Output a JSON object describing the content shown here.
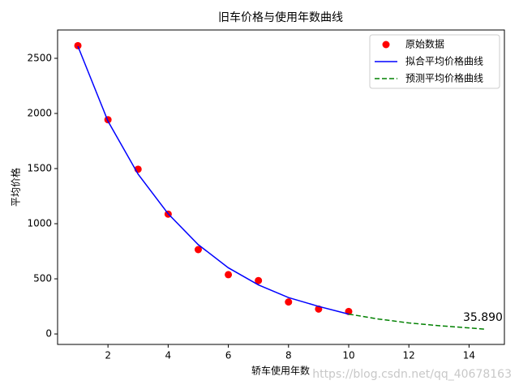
{
  "chart_data": {
    "type": "line",
    "title": "旧车价格与使用年数曲线",
    "x_label": "轿车使用年数",
    "y_label": "平均价格",
    "xlim": [
      0.325,
      15.175
    ],
    "xticks": [
      2,
      4,
      6,
      8,
      10,
      12,
      14
    ],
    "ylim": [
      -95,
      2757
    ],
    "yticks": [
      0,
      500,
      1000,
      1500,
      2000,
      2500
    ],
    "legend": "upper right",
    "series": [
      {
        "name": "原始数据",
        "color": "#ff0000",
        "style": "marker",
        "x": [
          1,
          2,
          3,
          4,
          5,
          6,
          7,
          8,
          9,
          10
        ],
        "values": [
          2615,
          1943,
          1494,
          1087,
          765,
          538,
          484,
          290,
          226,
          204
        ]
      },
      {
        "name": "拟合平均价格曲线",
        "color": "#0000ff",
        "style": "solid",
        "x": [
          1,
          2,
          3,
          4,
          5,
          6,
          7,
          8,
          9,
          10
        ],
        "values": [
          2610,
          1930,
          1450,
          1090,
          810,
          600,
          445,
          330,
          250,
          180
        ]
      },
      {
        "name": "预测平均价格曲线",
        "color": "#008000",
        "style": "dashed",
        "x": [
          10,
          11,
          12,
          13,
          14,
          14.5
        ],
        "values": [
          180,
          135,
          100,
          75,
          55,
          44
        ]
      }
    ],
    "annotation": {
      "text": "35.890",
      "x": 13.8,
      "y": 44
    },
    "watermark": "https://blog.csdn.net/qq_40678163"
  }
}
